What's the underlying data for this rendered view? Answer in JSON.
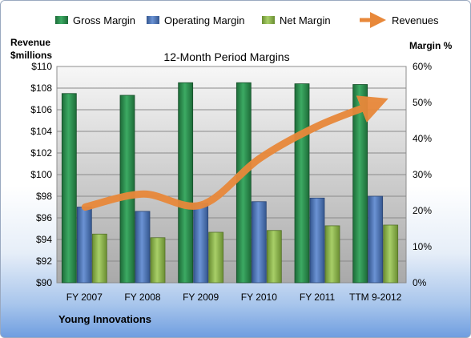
{
  "chart_data": {
    "type": "bar",
    "title": "12-Month Period Margins",
    "company": "Young Innovations",
    "left_axis_label_line1": "Revenue",
    "left_axis_label_line2": "$millions",
    "right_axis_label": "Margin %",
    "left_ylim": [
      90,
      110
    ],
    "left_ticks": [
      "$90",
      "$92",
      "$94",
      "$96",
      "$98",
      "$100",
      "$102",
      "$104",
      "$106",
      "$108",
      "$110"
    ],
    "right_ylim": [
      0,
      60
    ],
    "right_ticks": [
      "0%",
      "10%",
      "20%",
      "30%",
      "40%",
      "50%",
      "60%"
    ],
    "categories": [
      "FY 2007",
      "FY 2008",
      "FY 2009",
      "FY 2010",
      "FY 2011",
      "TTM 9-2012"
    ],
    "series": [
      {
        "name": "Gross Margin",
        "axis": "right",
        "color": "#2e8b4f",
        "values": [
          52.5,
          52.0,
          55.5,
          55.5,
          55.2,
          55.0
        ]
      },
      {
        "name": "Operating Margin",
        "axis": "right",
        "color": "#4a74b8",
        "values": [
          21.0,
          19.8,
          22.0,
          22.5,
          23.5,
          24.0
        ]
      },
      {
        "name": "Net Margin",
        "axis": "right",
        "color": "#8db84a",
        "values": [
          13.5,
          12.5,
          14.0,
          14.5,
          15.8,
          16.0
        ]
      },
      {
        "name": "Revenues",
        "axis": "left",
        "color": "#e8883a",
        "type": "line",
        "values": [
          97.0,
          98.2,
          97.2,
          101.5,
          104.5,
          106.6
        ]
      }
    ],
    "legend_position": "top",
    "grid": true
  }
}
